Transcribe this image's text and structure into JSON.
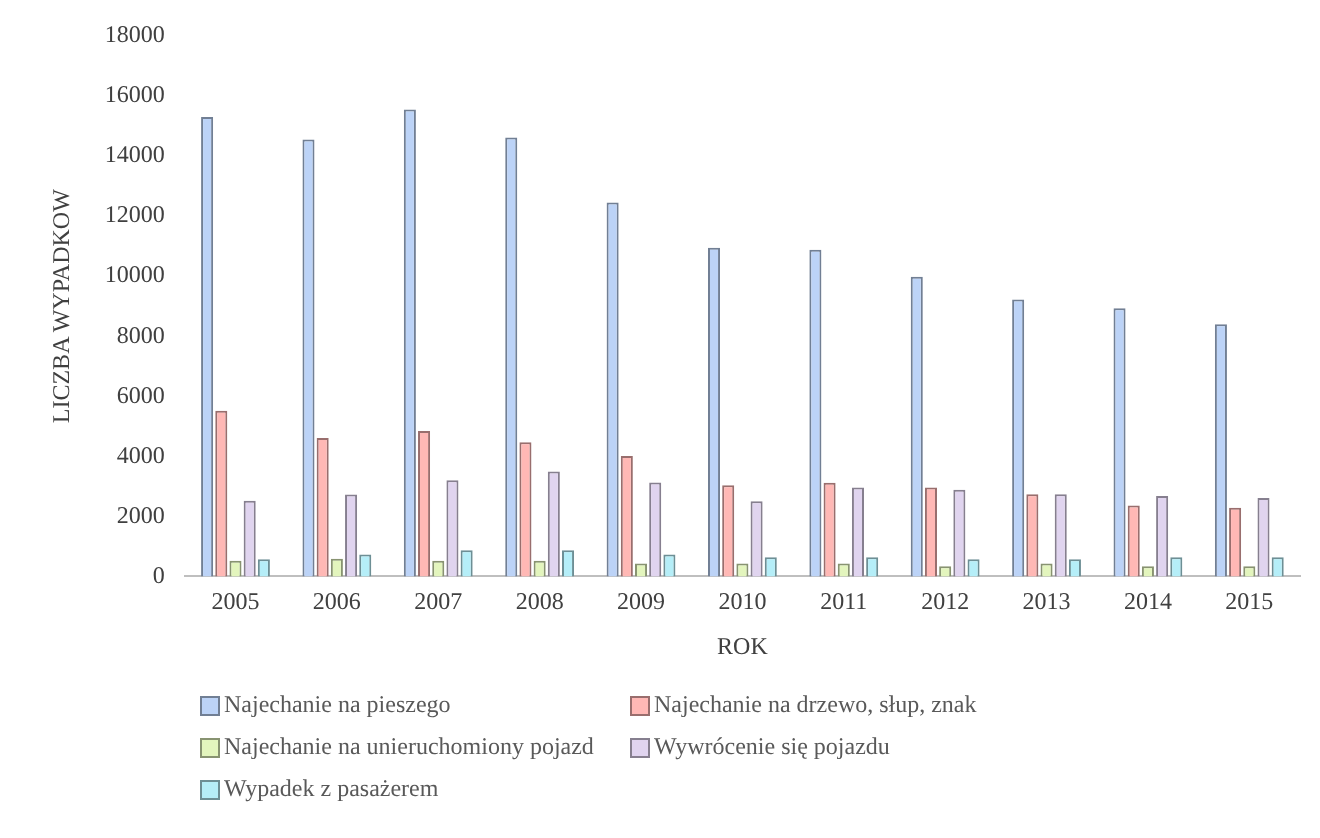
{
  "chart_data": {
    "type": "bar",
    "xlabel": "ROK",
    "ylabel": "LICZBA WYPADKOW",
    "categories": [
      "2005",
      "2006",
      "2007",
      "2008",
      "2009",
      "2010",
      "2011",
      "2012",
      "2013",
      "2014",
      "2015"
    ],
    "series": [
      {
        "name": "Najechanie na pieszego",
        "color": "#bcd3f7",
        "values": [
          15300,
          14550,
          15550,
          14620,
          12450,
          10950,
          10880,
          9980,
          9220,
          8930,
          8400
        ]
      },
      {
        "name": "Najechanie na drzewo, słup, znak",
        "color": "#ffb8b5",
        "values": [
          5520,
          4610,
          4840,
          4470,
          4010,
          3040,
          3120,
          2960,
          2740,
          2360,
          2290
        ]
      },
      {
        "name": "Najechanie na unieruchomiony pojazd",
        "color": "#e3f5bd",
        "values": [
          520,
          590,
          520,
          520,
          430,
          430,
          430,
          340,
          430,
          340,
          340
        ]
      },
      {
        "name": "Wywrócenie się pojazdu",
        "color": "#e0d4ef",
        "values": [
          2520,
          2730,
          3200,
          3490,
          3130,
          2500,
          2960,
          2890,
          2740,
          2680,
          2610
        ]
      },
      {
        "name": "Wypadek z pasażerem",
        "color": "#b5eef8",
        "values": [
          570,
          730,
          870,
          870,
          730,
          640,
          640,
          570,
          570,
          640,
          640
        ]
      }
    ],
    "ylim": [
      0,
      18000
    ],
    "yticks": [
      0,
      2000,
      4000,
      6000,
      8000,
      10000,
      12000,
      14000,
      16000,
      18000
    ],
    "grid": false,
    "legend": "bottom"
  }
}
